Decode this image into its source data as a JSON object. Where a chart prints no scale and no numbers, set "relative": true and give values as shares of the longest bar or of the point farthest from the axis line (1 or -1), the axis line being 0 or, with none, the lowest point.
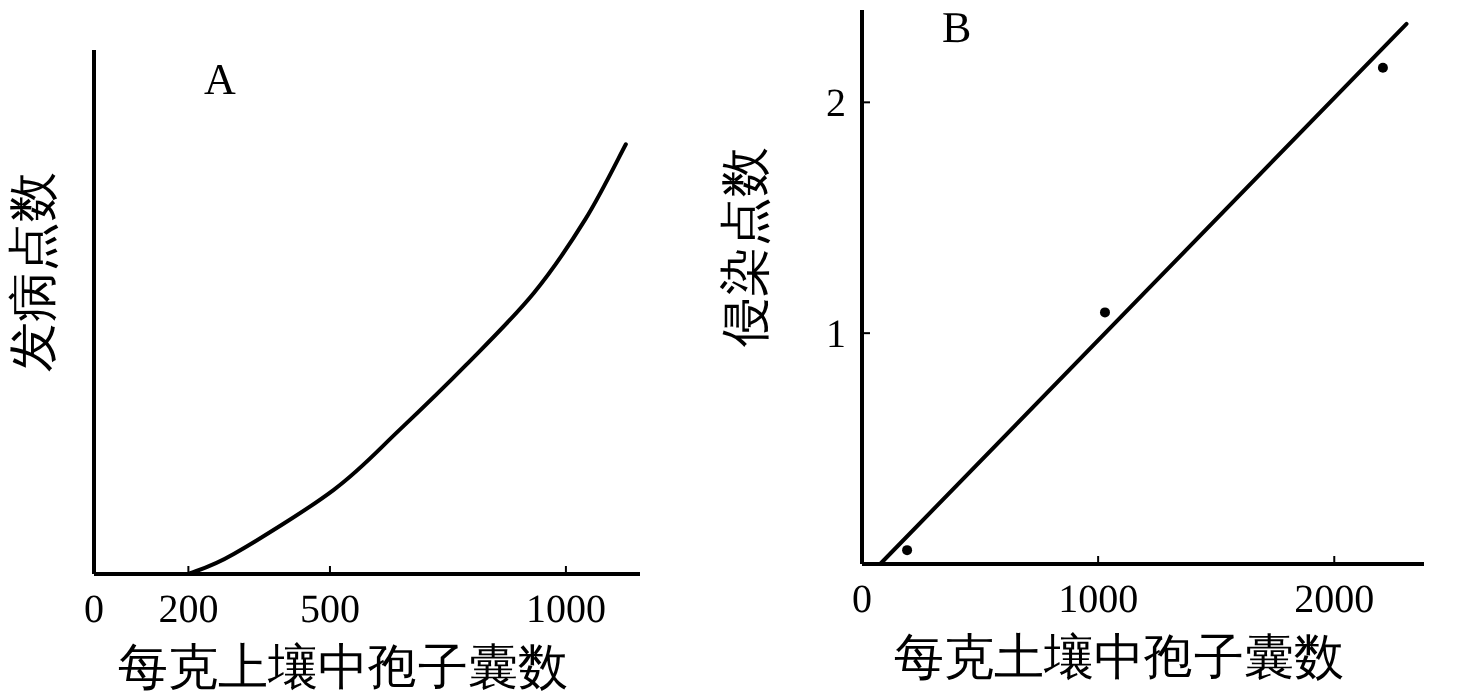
{
  "chart_data": [
    {
      "type": "line",
      "title": "A",
      "xlabel": "每克上壤中孢子囊数",
      "ylabel": "发病点数",
      "relative": true,
      "xlim": [
        0,
        1157
      ],
      "xticks": [
        0,
        200,
        500,
        1000
      ],
      "series": [
        {
          "color": "#000000",
          "marker": "none",
          "x": [
            200,
            297,
            508,
            648,
            788,
            932,
            1042,
            1127
          ],
          "values": [
            0,
            0.047,
            0.196,
            0.336,
            0.486,
            0.654,
            0.827,
            1
          ]
        }
      ]
    },
    {
      "type": "scatter",
      "title": "B",
      "xlabel": "每克土壤中孢子囊数",
      "ylabel": "侵染点数",
      "xlim": [
        0,
        2380
      ],
      "ylim": [
        0,
        2.4
      ],
      "xticks": [
        0,
        1000,
        2000
      ],
      "yticks": [
        1,
        2
      ],
      "series": [
        {
          "color": "#000000",
          "marker": "circle",
          "x": [
            191,
            1029,
            2206
          ],
          "values": [
            0.06,
            1.09,
            2.15
          ]
        },
        {
          "type": "line",
          "color": "#000000",
          "marker": "none",
          "x": [
            77,
            2306
          ],
          "values": [
            0,
            2.34
          ]
        }
      ]
    }
  ]
}
